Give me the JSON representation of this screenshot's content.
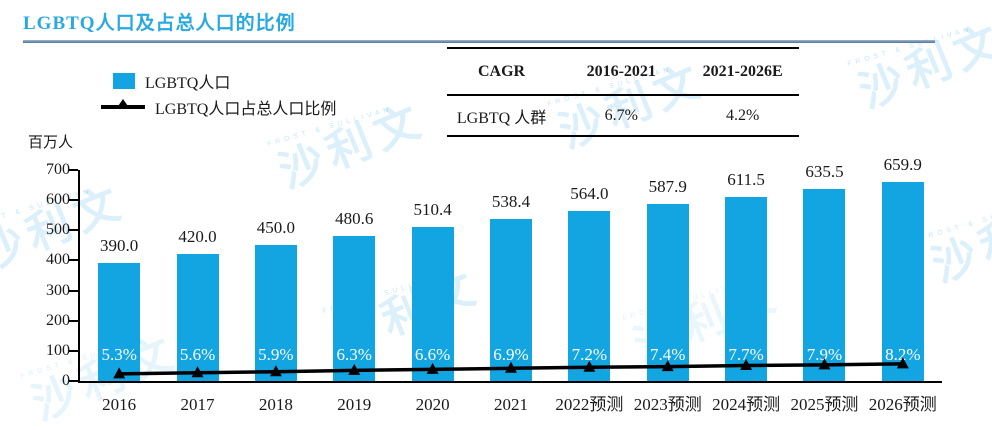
{
  "title": "LGBTQ人口及占总人口的比例",
  "unit_label": "百万人",
  "legend": {
    "items": [
      {
        "label": "LGBTQ人口"
      },
      {
        "label": "LGBTQ人口占总人口比例"
      }
    ]
  },
  "cagr_table": {
    "col_headers": [
      "CAGR",
      "2016-2021",
      "2021-2026E"
    ],
    "row_label": "LGBTQ 人群",
    "values": [
      "6.7%",
      "4.2%"
    ]
  },
  "watermark": {
    "text": "沙利文",
    "arc_text": "FROST & SULLIVAN"
  },
  "colors": {
    "bar": "#12A5E2",
    "title": "#29A9E1",
    "rule": "#5B80A5",
    "line": "#000000",
    "percent_text": "#FFFFFF",
    "watermark": "rgba(41,169,225,0.17)"
  },
  "chart_data": {
    "type": "bar",
    "title": "LGBTQ人口及占总人口的比例",
    "categories": [
      "2016",
      "2017",
      "2018",
      "2019",
      "2020",
      "2021",
      "2022预测",
      "2023预测",
      "2024预测",
      "2025预测",
      "2026预测"
    ],
    "series": [
      {
        "name": "LGBTQ人口",
        "type": "bar",
        "unit": "百万人",
        "values": [
          390.0,
          420.0,
          450.0,
          480.6,
          510.4,
          538.4,
          564.0,
          587.9,
          611.5,
          635.5,
          659.9
        ],
        "labels": [
          "390.0",
          "420.0",
          "450.0",
          "480.6",
          "510.4",
          "538.4",
          "564.0",
          "587.9",
          "611.5",
          "635.5",
          "659.9"
        ]
      },
      {
        "name": "LGBTQ人口占总人口比例",
        "type": "line",
        "unit": "%",
        "values": [
          5.3,
          5.6,
          5.9,
          6.3,
          6.6,
          6.9,
          7.2,
          7.4,
          7.7,
          7.9,
          8.2
        ],
        "labels": [
          "5.3%",
          "5.6%",
          "5.9%",
          "6.3%",
          "6.6%",
          "6.9%",
          "7.2%",
          "7.4%",
          "7.7%",
          "7.9%",
          "8.2%"
        ]
      }
    ],
    "xlabel": "",
    "ylabel": "百万人",
    "ylim": [
      0,
      700
    ],
    "yticks": [
      0,
      100,
      200,
      300,
      400,
      500,
      600,
      700
    ],
    "grid": false,
    "legend_position": "top-left"
  }
}
